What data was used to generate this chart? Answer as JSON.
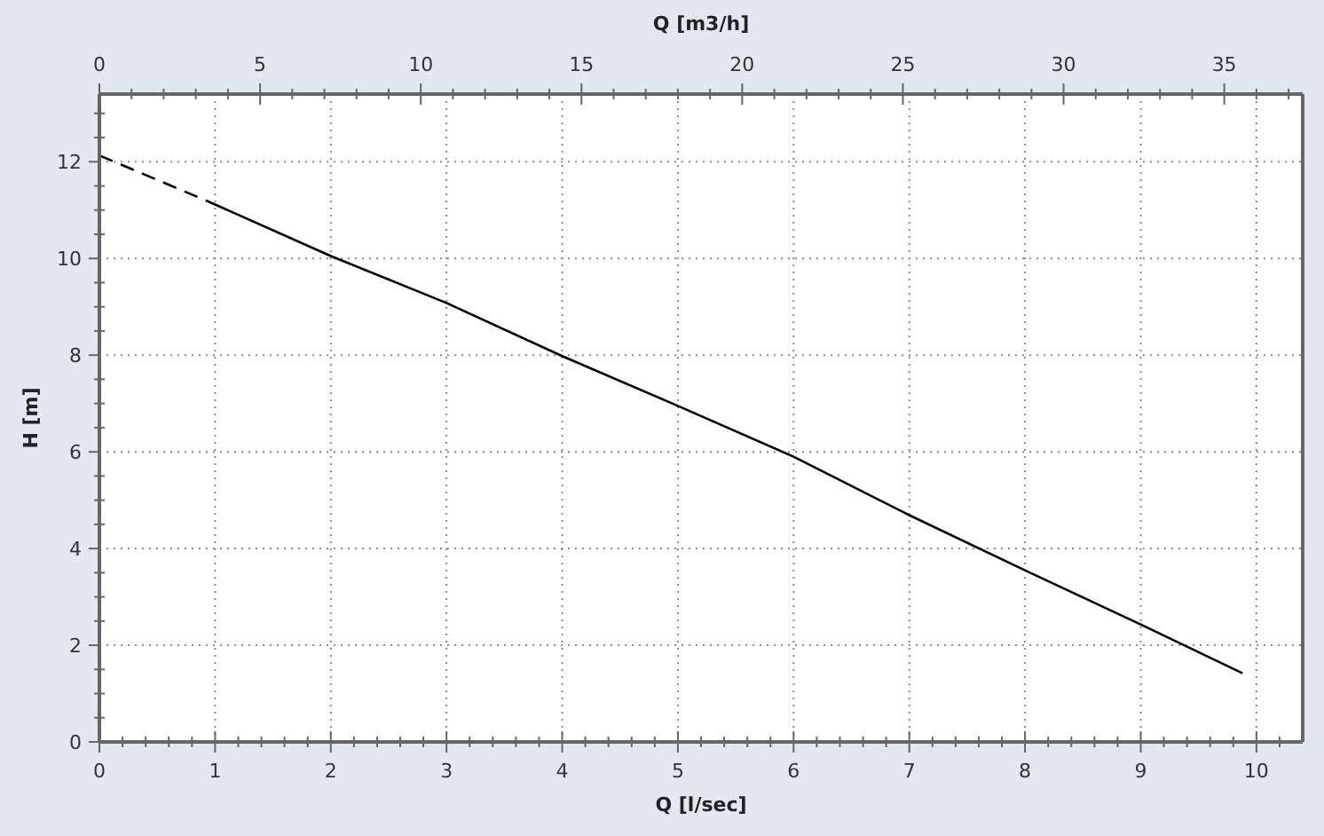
{
  "chart_data": {
    "type": "line",
    "xlabel": "Q [l/sec]",
    "ylabel": "H [m]",
    "x2label": "Q [m3/h]",
    "xlim": [
      0,
      10.4
    ],
    "ylim": [
      0,
      13.4
    ],
    "x2lim": [
      0,
      37.44
    ],
    "xticks": [
      0,
      {
        "value": 0.2,
        "label": null
      },
      {
        "value": 0.4,
        "label": null
      },
      {
        "value": 0.6,
        "label": null
      },
      {
        "value": 0.8,
        "label": null
      },
      1,
      {
        "value": 1.2,
        "label": null
      },
      {
        "value": 1.4,
        "label": null
      },
      {
        "value": 1.6,
        "label": null
      },
      {
        "value": 1.8,
        "label": null
      },
      2,
      {
        "value": 2.2,
        "label": null
      },
      {
        "value": 2.4,
        "label": null
      },
      {
        "value": 2.6,
        "label": null
      },
      {
        "value": 2.8,
        "label": null
      },
      3,
      {
        "value": 3.2,
        "label": null
      },
      {
        "value": 3.4,
        "label": null
      },
      {
        "value": 3.6,
        "label": null
      },
      {
        "value": 3.8,
        "label": null
      },
      4,
      {
        "value": 4.2,
        "label": null
      },
      {
        "value": 4.4,
        "label": null
      },
      {
        "value": 4.6,
        "label": null
      },
      {
        "value": 4.8,
        "label": null
      },
      5,
      {
        "value": 5.2,
        "label": null
      },
      {
        "value": 5.4,
        "label": null
      },
      {
        "value": 5.6,
        "label": null
      },
      {
        "value": 5.8,
        "label": null
      },
      6,
      {
        "value": 6.2,
        "label": null
      },
      {
        "value": 6.4,
        "label": null
      },
      {
        "value": 6.6,
        "label": null
      },
      {
        "value": 6.8,
        "label": null
      },
      7,
      {
        "value": 7.2,
        "label": null
      },
      {
        "value": 7.4,
        "label": null
      },
      {
        "value": 7.6,
        "label": null
      },
      {
        "value": 7.8,
        "label": null
      },
      8,
      {
        "value": 8.2,
        "label": null
      },
      {
        "value": 8.4,
        "label": null
      },
      {
        "value": 8.6,
        "label": null
      },
      {
        "value": 8.8,
        "label": null
      },
      9,
      {
        "value": 9.2,
        "label": null
      },
      {
        "value": 9.4,
        "label": null
      },
      {
        "value": 9.6,
        "label": null
      },
      {
        "value": 9.8,
        "label": null
      },
      10,
      {
        "value": 10.2,
        "label": null
      }
    ],
    "x2ticks": [
      0,
      {
        "value": 1,
        "label": null
      },
      {
        "value": 2,
        "label": null
      },
      {
        "value": 3,
        "label": null
      },
      {
        "value": 4,
        "label": null
      },
      5,
      {
        "value": 6,
        "label": null
      },
      {
        "value": 7,
        "label": null
      },
      {
        "value": 8,
        "label": null
      },
      {
        "value": 9,
        "label": null
      },
      10,
      {
        "value": 11,
        "label": null
      },
      {
        "value": 12,
        "label": null
      },
      {
        "value": 13,
        "label": null
      },
      {
        "value": 14,
        "label": null
      },
      15,
      {
        "value": 16,
        "label": null
      },
      {
        "value": 17,
        "label": null
      },
      {
        "value": 18,
        "label": null
      },
      {
        "value": 19,
        "label": null
      },
      20,
      {
        "value": 21,
        "label": null
      },
      {
        "value": 22,
        "label": null
      },
      {
        "value": 23,
        "label": null
      },
      {
        "value": 24,
        "label": null
      },
      25,
      {
        "value": 26,
        "label": null
      },
      {
        "value": 27,
        "label": null
      },
      {
        "value": 28,
        "label": null
      },
      {
        "value": 29,
        "label": null
      },
      30,
      {
        "value": 31,
        "label": null
      },
      {
        "value": 32,
        "label": null
      },
      {
        "value": 33,
        "label": null
      },
      {
        "value": 34,
        "label": null
      },
      35,
      {
        "value": 36,
        "label": null
      },
      {
        "value": 37,
        "label": null
      }
    ],
    "yticks": [
      0,
      {
        "value": 0.5,
        "label": null
      },
      {
        "value": 1,
        "label": null
      },
      {
        "value": 1.5,
        "label": null
      },
      2,
      {
        "value": 2.5,
        "label": null
      },
      {
        "value": 3,
        "label": null
      },
      {
        "value": 3.5,
        "label": null
      },
      4,
      {
        "value": 4.5,
        "label": null
      },
      {
        "value": 5,
        "label": null
      },
      {
        "value": 5.5,
        "label": null
      },
      6,
      {
        "value": 6.5,
        "label": null
      },
      {
        "value": 7,
        "label": null
      },
      {
        "value": 7.5,
        "label": null
      },
      8,
      {
        "value": 8.5,
        "label": null
      },
      {
        "value": 9,
        "label": null
      },
      {
        "value": 9.5,
        "label": null
      },
      10,
      {
        "value": 10.5,
        "label": null
      },
      {
        "value": 11,
        "label": null
      },
      {
        "value": 11.5,
        "label": null
      },
      12,
      {
        "value": 12.5,
        "label": null
      },
      {
        "value": 13,
        "label": null
      }
    ],
    "grid": true,
    "marker": "none",
    "series": [
      {
        "color": "#000000",
        "line_style": "dashed",
        "x": [
          0,
          0.94
        ],
        "values": [
          12.13,
          11.18
        ]
      },
      {
        "color": "#000000",
        "line_style": "solid",
        "x": [
          0.94,
          2,
          3,
          4,
          5,
          6,
          7,
          8,
          9,
          9.88
        ],
        "values": [
          11.18,
          10.05,
          9.08,
          7.98,
          6.95,
          5.9,
          4.69,
          3.55,
          2.43,
          1.42
        ]
      }
    ]
  }
}
